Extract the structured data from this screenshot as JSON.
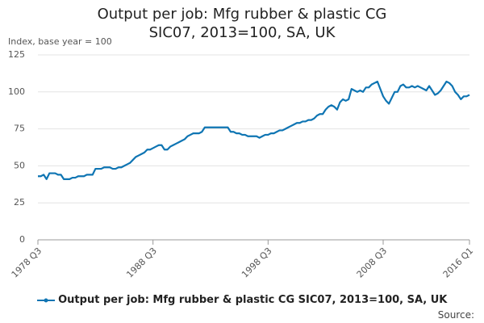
{
  "chart_data": {
    "type": "line",
    "title": "Output per job: Mfg rubber & plastic CG SIC07, 2013=100, SA, UK",
    "ylabel": "Index, base year = 100",
    "source": "Source:",
    "categories": [
      "1978 Q3",
      null,
      null,
      null,
      null,
      null,
      null,
      null,
      null,
      null,
      null,
      null,
      null,
      null,
      null,
      null,
      null,
      null,
      null,
      null,
      null,
      null,
      null,
      null,
      null,
      null,
      null,
      null,
      null,
      null,
      null,
      null,
      null,
      null,
      null,
      null,
      null,
      null,
      null,
      null,
      "1988 Q3",
      null,
      null,
      null,
      null,
      null,
      null,
      null,
      null,
      null,
      null,
      null,
      null,
      null,
      null,
      null,
      null,
      null,
      null,
      null,
      null,
      null,
      null,
      null,
      null,
      null,
      null,
      null,
      null,
      null,
      null,
      null,
      null,
      null,
      null,
      null,
      null,
      null,
      null,
      null,
      "1998 Q3",
      null,
      null,
      null,
      null,
      null,
      null,
      null,
      null,
      null,
      null,
      null,
      null,
      null,
      null,
      null,
      null,
      null,
      null,
      null,
      null,
      null,
      null,
      null,
      null,
      null,
      null,
      null,
      null,
      null,
      null,
      null,
      null,
      null,
      null,
      null,
      null,
      null,
      null,
      null,
      "2008 Q3",
      null,
      null,
      null,
      null,
      null,
      null,
      null,
      null,
      null,
      null,
      null,
      null,
      null,
      null,
      null,
      null,
      null,
      null,
      null,
      null,
      null,
      null,
      null,
      null,
      null,
      null,
      null,
      null,
      null,
      "2016 Q1"
    ],
    "series": [
      {
        "name": "Output per job: Mfg rubber & plastic CG SIC07, 2013=100, SA, UK",
        "color": "#0f75b3",
        "values": [
          43,
          43,
          44,
          41,
          45,
          45,
          45,
          44,
          44,
          41,
          41,
          41,
          42,
          42,
          43,
          43,
          43,
          44,
          44,
          44,
          48,
          48,
          48,
          49,
          49,
          49,
          48,
          48,
          49,
          49,
          50,
          51,
          52,
          54,
          56,
          57,
          58,
          59,
          61,
          61,
          62,
          63,
          64,
          64,
          61,
          61,
          63,
          64,
          65,
          66,
          67,
          68,
          70,
          71,
          72,
          72,
          72,
          73,
          76,
          76,
          76,
          76,
          76,
          76,
          76,
          76,
          76,
          73,
          73,
          72,
          72,
          71,
          71,
          70,
          70,
          70,
          70,
          69,
          70,
          71,
          71,
          72,
          72,
          73,
          74,
          74,
          75,
          76,
          77,
          78,
          79,
          79,
          80,
          80,
          81,
          81,
          82,
          84,
          85,
          85,
          88,
          90,
          91,
          90,
          88,
          93,
          95,
          94,
          95,
          102,
          101,
          100,
          101,
          100,
          103,
          103,
          105,
          106,
          107,
          102,
          97,
          94,
          92,
          96,
          100,
          100,
          104,
          105,
          103,
          103,
          104,
          103,
          104,
          103,
          102,
          101,
          104,
          101,
          98,
          99,
          101,
          104,
          107,
          106,
          104,
          100,
          98,
          95,
          97,
          97,
          98
        ]
      }
    ],
    "ylim": [
      0,
      125
    ],
    "yticks": [
      0,
      25,
      50,
      75,
      100,
      125
    ],
    "grid": true
  }
}
